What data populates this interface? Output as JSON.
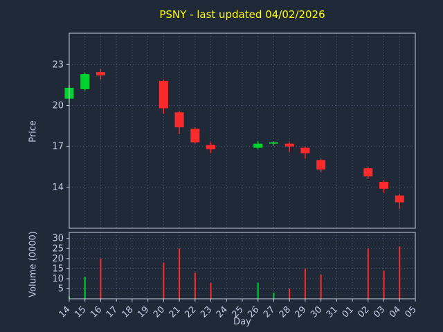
{
  "chart_data": {
    "type": "candlestick+volume",
    "title": "PSNY - last updated 04/02/2026",
    "xlabel": "Day",
    "ylabel_price": "Price",
    "ylabel_volume": "Volume (0000)",
    "days": [
      "14",
      "15",
      "16",
      "17",
      "18",
      "19",
      "20",
      "21",
      "22",
      "23",
      "24",
      "25",
      "26",
      "27",
      "28",
      "29",
      "30",
      "31",
      "01",
      "02",
      "03",
      "04",
      "05"
    ],
    "price_ticks": [
      14,
      17,
      20,
      23
    ],
    "price_range": [
      11.0,
      25.3
    ],
    "volume_ticks": [
      5,
      10,
      15,
      20,
      25,
      30
    ],
    "volume_range": [
      0,
      33
    ],
    "grid": true,
    "candles": [
      {
        "day": "14",
        "open": 20.5,
        "high": 21.5,
        "low": 20.2,
        "close": 21.3
      },
      {
        "day": "15",
        "open": 21.2,
        "high": 22.4,
        "low": 21.1,
        "close": 22.3
      },
      {
        "day": "16",
        "open": 22.45,
        "high": 22.7,
        "low": 21.9,
        "close": 22.2
      },
      {
        "day": "20",
        "open": 21.8,
        "high": 21.9,
        "low": 19.4,
        "close": 19.8
      },
      {
        "day": "21",
        "open": 19.5,
        "high": 19.6,
        "low": 17.9,
        "close": 18.4
      },
      {
        "day": "22",
        "open": 18.3,
        "high": 18.4,
        "low": 17.2,
        "close": 17.3
      },
      {
        "day": "23",
        "open": 17.1,
        "high": 17.3,
        "low": 16.5,
        "close": 16.8
      },
      {
        "day": "26",
        "open": 16.9,
        "high": 17.4,
        "low": 16.8,
        "close": 17.2
      },
      {
        "day": "27",
        "open": 17.2,
        "high": 17.35,
        "low": 17.05,
        "close": 17.3
      },
      {
        "day": "28",
        "open": 17.2,
        "high": 17.3,
        "low": 16.6,
        "close": 17.0
      },
      {
        "day": "29",
        "open": 16.9,
        "high": 17.0,
        "low": 16.1,
        "close": 16.5
      },
      {
        "day": "30",
        "open": 16.0,
        "high": 16.1,
        "low": 15.1,
        "close": 15.3
      },
      {
        "day": "02",
        "open": 15.4,
        "high": 15.5,
        "low": 14.6,
        "close": 14.8
      },
      {
        "day": "03",
        "open": 14.4,
        "high": 14.5,
        "low": 13.6,
        "close": 13.9
      },
      {
        "day": "04",
        "open": 13.4,
        "high": 13.5,
        "low": 12.4,
        "close": 12.9
      }
    ],
    "volumes": [
      {
        "day": "14",
        "value": 1.2
      },
      {
        "day": "15",
        "value": 11
      },
      {
        "day": "16",
        "value": 20
      },
      {
        "day": "20",
        "value": 18
      },
      {
        "day": "21",
        "value": 25
      },
      {
        "day": "22",
        "value": 13
      },
      {
        "day": "23",
        "value": 8
      },
      {
        "day": "26",
        "value": 8
      },
      {
        "day": "27",
        "value": 3
      },
      {
        "day": "28",
        "value": 5
      },
      {
        "day": "29",
        "value": 15
      },
      {
        "day": "30",
        "value": 12
      },
      {
        "day": "02",
        "value": 25
      },
      {
        "day": "03",
        "value": 14
      },
      {
        "day": "04",
        "value": 26
      }
    ],
    "colors": {
      "up": "#00d22e",
      "down": "#fb2b2b",
      "title": "#ffff00",
      "text": "#c7cde6",
      "grid": "#5c6a85",
      "frame": "#c8cede",
      "background": "#202938"
    }
  }
}
